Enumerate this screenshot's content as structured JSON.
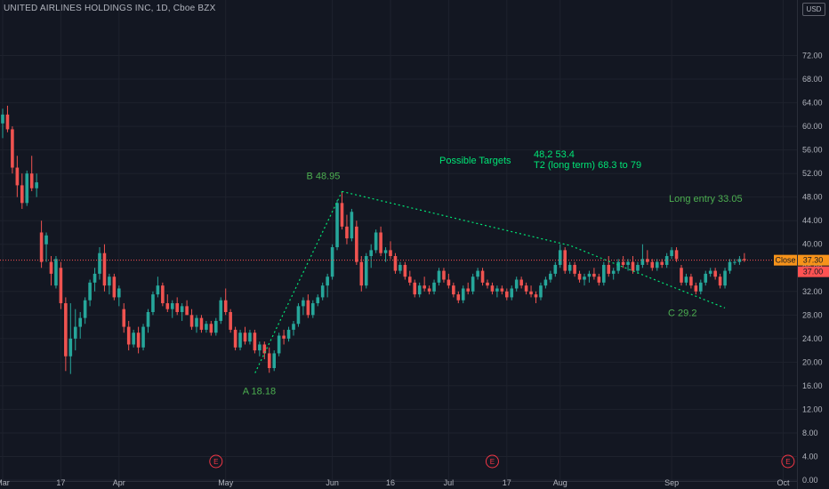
{
  "header": {
    "title": "UNITED AIRLINES HOLDINGS INC, 1D, Cboe BZX",
    "currency_button": "USD"
  },
  "colors": {
    "up": "#26a69a",
    "down": "#ef5350",
    "annotation": "#4caf50",
    "target": "#00e676",
    "price_line": "#ff5252",
    "last_badge": "#f7931a",
    "event": "#f23645"
  },
  "chart_data": {
    "type": "candlestick",
    "ylim": [
      0,
      76
    ],
    "y_ticks": [
      "72.00",
      "68.00",
      "64.00",
      "60.00",
      "56.00",
      "52.00",
      "48.00",
      "44.00",
      "40.00",
      "36.00",
      "32.00",
      "28.00",
      "24.00",
      "20.00",
      "16.00",
      "12.00",
      "8.00",
      "4.00",
      "0.00"
    ],
    "y_tick_values": [
      72,
      68,
      64,
      60,
      56,
      52,
      48,
      44,
      40,
      36,
      32,
      28,
      24,
      20,
      16,
      12,
      8,
      4,
      0
    ],
    "x_ticks": [
      "Mar",
      "17",
      "Apr",
      "May",
      "Jun",
      "16",
      "Jul",
      "17",
      "Aug",
      "Sep",
      "Oct"
    ],
    "x_tick_index": [
      0,
      12,
      24,
      46,
      68,
      80,
      92,
      104,
      115,
      138,
      161
    ],
    "candles": [
      [
        60.5,
        63.0,
        58.0,
        62.0
      ],
      [
        62.0,
        63.5,
        59.0,
        59.5
      ],
      [
        59.5,
        60.0,
        52.0,
        53.0
      ],
      [
        53.0,
        55.0,
        48.0,
        50.0
      ],
      [
        50.0,
        52.0,
        46.0,
        47.0
      ],
      [
        47.0,
        52.5,
        46.5,
        52.0
      ],
      [
        52.0,
        55.0,
        49.0,
        49.5
      ],
      [
        49.5,
        52.0,
        48.0,
        50.5
      ],
      [
        42.0,
        44.0,
        36.0,
        37.0
      ],
      [
        40.0,
        42.0,
        37.0,
        41.5
      ],
      [
        37.0,
        38.0,
        33.0,
        35.0
      ],
      [
        33.0,
        38.0,
        32.5,
        37.5
      ],
      [
        36.0,
        37.0,
        29.0,
        30.0
      ],
      [
        30.0,
        31.0,
        18.5,
        21.0
      ],
      [
        21.0,
        30.0,
        18.0,
        24.0
      ],
      [
        24.0,
        29.0,
        22.0,
        26.0
      ],
      [
        26.0,
        28.5,
        24.0,
        27.5
      ],
      [
        27.5,
        31.0,
        26.5,
        30.5
      ],
      [
        30.5,
        34.0,
        29.5,
        33.5
      ],
      [
        33.5,
        36.0,
        32.0,
        35.0
      ],
      [
        35.0,
        39.5,
        34.0,
        38.5
      ],
      [
        38.5,
        40.0,
        32.0,
        33.0
      ],
      [
        33.0,
        35.0,
        31.5,
        34.5
      ],
      [
        34.5,
        35.0,
        30.5,
        31.0
      ],
      [
        31.0,
        33.0,
        29.5,
        32.5
      ],
      [
        29.0,
        30.0,
        25.0,
        26.0
      ],
      [
        26.0,
        27.0,
        22.0,
        23.0
      ],
      [
        23.0,
        25.5,
        22.5,
        25.0
      ],
      [
        25.0,
        26.0,
        21.5,
        22.5
      ],
      [
        22.5,
        26.5,
        22.0,
        26.0
      ],
      [
        26.0,
        29.0,
        25.0,
        28.5
      ],
      [
        28.5,
        32.0,
        28.0,
        31.5
      ],
      [
        31.5,
        34.5,
        31.0,
        33.0
      ],
      [
        33.0,
        33.5,
        29.5,
        30.0
      ],
      [
        30.0,
        31.5,
        28.5,
        29.0
      ],
      [
        29.0,
        30.5,
        27.5,
        30.0
      ],
      [
        30.0,
        31.0,
        28.0,
        28.5
      ],
      [
        28.5,
        30.0,
        27.0,
        29.5
      ],
      [
        29.5,
        30.5,
        28.0,
        28.0
      ],
      [
        28.0,
        29.0,
        25.5,
        26.0
      ],
      [
        26.0,
        28.0,
        25.0,
        27.5
      ],
      [
        27.5,
        28.0,
        25.0,
        25.5
      ],
      [
        25.5,
        27.0,
        25.0,
        26.5
      ],
      [
        26.5,
        27.0,
        24.5,
        25.0
      ],
      [
        25.0,
        27.5,
        24.5,
        27.0
      ],
      [
        27.0,
        31.0,
        26.5,
        30.5
      ],
      [
        30.5,
        32.5,
        28.0,
        28.5
      ],
      [
        28.5,
        29.0,
        25.0,
        25.5
      ],
      [
        25.5,
        26.0,
        22.0,
        22.5
      ],
      [
        22.5,
        25.5,
        22.0,
        25.0
      ],
      [
        25.0,
        26.0,
        23.0,
        23.5
      ],
      [
        23.5,
        25.5,
        23.0,
        25.0
      ],
      [
        25.0,
        25.5,
        21.5,
        22.0
      ],
      [
        22.0,
        23.5,
        21.0,
        23.0
      ],
      [
        23.0,
        23.5,
        20.5,
        21.5
      ],
      [
        21.5,
        22.5,
        18.2,
        19.0
      ],
      [
        19.0,
        22.0,
        18.5,
        21.5
      ],
      [
        21.5,
        25.0,
        21.0,
        24.5
      ],
      [
        24.5,
        25.5,
        23.0,
        24.0
      ],
      [
        24.0,
        26.0,
        23.5,
        25.5
      ],
      [
        25.5,
        27.0,
        24.5,
        26.5
      ],
      [
        26.5,
        30.0,
        26.0,
        29.5
      ],
      [
        29.5,
        31.0,
        28.0,
        30.5
      ],
      [
        30.5,
        31.5,
        27.5,
        28.0
      ],
      [
        28.0,
        30.5,
        27.5,
        30.0
      ],
      [
        30.0,
        31.5,
        29.5,
        31.0
      ],
      [
        31.0,
        33.5,
        30.5,
        33.0
      ],
      [
        33.0,
        35.0,
        31.0,
        34.5
      ],
      [
        34.5,
        40.0,
        34.0,
        39.5
      ],
      [
        39.5,
        47.5,
        39.0,
        47.0
      ],
      [
        47.0,
        48.95,
        42.5,
        43.0
      ],
      [
        43.0,
        45.0,
        40.0,
        41.0
      ],
      [
        41.0,
        46.0,
        40.5,
        45.5
      ],
      [
        43.0,
        44.0,
        36.5,
        37.0
      ],
      [
        37.0,
        38.0,
        32.0,
        33.0
      ],
      [
        33.0,
        38.5,
        32.5,
        38.0
      ],
      [
        38.0,
        40.0,
        36.0,
        39.0
      ],
      [
        39.0,
        42.5,
        38.5,
        42.0
      ],
      [
        42.0,
        43.0,
        38.0,
        38.5
      ],
      [
        38.5,
        39.5,
        37.0,
        39.0
      ],
      [
        39.0,
        40.5,
        37.5,
        38.0
      ],
      [
        38.0,
        38.5,
        35.0,
        35.5
      ],
      [
        35.5,
        37.0,
        35.0,
        36.5
      ],
      [
        36.5,
        37.0,
        34.0,
        34.5
      ],
      [
        34.5,
        35.5,
        33.0,
        33.5
      ],
      [
        33.5,
        34.0,
        31.0,
        31.5
      ],
      [
        31.5,
        33.5,
        31.0,
        33.0
      ],
      [
        33.0,
        34.5,
        32.0,
        32.5
      ],
      [
        32.5,
        33.0,
        31.5,
        32.0
      ],
      [
        32.0,
        34.0,
        31.5,
        33.5
      ],
      [
        33.5,
        36.0,
        33.0,
        35.5
      ],
      [
        35.5,
        36.0,
        33.5,
        34.0
      ],
      [
        34.0,
        35.0,
        32.5,
        33.0
      ],
      [
        33.0,
        33.5,
        31.0,
        31.5
      ],
      [
        31.5,
        32.0,
        30.0,
        30.5
      ],
      [
        30.5,
        33.0,
        30.0,
        32.5
      ],
      [
        32.5,
        33.5,
        31.5,
        32.0
      ],
      [
        32.0,
        35.0,
        31.5,
        34.5
      ],
      [
        34.5,
        36.0,
        34.0,
        35.5
      ],
      [
        35.5,
        36.0,
        33.0,
        33.5
      ],
      [
        33.5,
        34.0,
        32.5,
        33.0
      ],
      [
        33.0,
        33.5,
        31.5,
        32.0
      ],
      [
        32.0,
        33.0,
        31.0,
        32.5
      ],
      [
        32.5,
        33.0,
        31.5,
        32.0
      ],
      [
        32.0,
        32.5,
        30.5,
        31.0
      ],
      [
        31.0,
        33.0,
        30.5,
        32.5
      ],
      [
        32.5,
        34.5,
        32.0,
        34.0
      ],
      [
        34.0,
        34.5,
        32.5,
        33.0
      ],
      [
        33.0,
        33.5,
        31.5,
        32.0
      ],
      [
        32.0,
        33.0,
        31.0,
        31.5
      ],
      [
        31.5,
        32.0,
        30.0,
        31.0
      ],
      [
        31.0,
        33.5,
        30.5,
        33.0
      ],
      [
        33.0,
        34.5,
        32.5,
        34.0
      ],
      [
        34.0,
        35.5,
        33.5,
        35.0
      ],
      [
        35.0,
        37.0,
        34.5,
        36.5
      ],
      [
        36.5,
        40.0,
        36.0,
        39.0
      ],
      [
        39.0,
        39.5,
        35.0,
        35.5
      ],
      [
        35.5,
        37.0,
        35.0,
        36.5
      ],
      [
        36.5,
        37.0,
        34.5,
        35.0
      ],
      [
        35.0,
        35.5,
        33.5,
        34.0
      ],
      [
        34.0,
        35.0,
        33.0,
        34.5
      ],
      [
        34.5,
        35.5,
        33.5,
        35.0
      ],
      [
        35.0,
        36.0,
        34.0,
        34.5
      ],
      [
        34.5,
        35.0,
        33.0,
        33.5
      ],
      [
        33.5,
        37.0,
        33.0,
        36.5
      ],
      [
        36.5,
        38.0,
        34.5,
        35.0
      ],
      [
        35.0,
        36.0,
        34.0,
        35.5
      ],
      [
        35.5,
        37.5,
        35.0,
        37.0
      ],
      [
        37.0,
        38.0,
        36.0,
        36.5
      ],
      [
        36.5,
        37.5,
        35.5,
        37.0
      ],
      [
        37.0,
        38.0,
        35.0,
        35.5
      ],
      [
        35.5,
        37.0,
        35.0,
        36.5
      ],
      [
        36.5,
        40.0,
        36.0,
        37.5
      ],
      [
        37.5,
        39.0,
        36.5,
        37.0
      ],
      [
        37.0,
        37.5,
        35.5,
        36.0
      ],
      [
        36.0,
        37.5,
        35.5,
        37.0
      ],
      [
        37.0,
        37.5,
        36.0,
        36.5
      ],
      [
        36.5,
        38.5,
        36.0,
        38.0
      ],
      [
        38.0,
        39.5,
        37.5,
        39.0
      ],
      [
        39.0,
        39.5,
        37.0,
        37.5
      ],
      [
        36.0,
        36.5,
        33.0,
        33.5
      ],
      [
        33.5,
        35.0,
        33.0,
        34.5
      ],
      [
        34.5,
        35.0,
        32.5,
        33.0
      ],
      [
        33.0,
        33.5,
        31.5,
        32.0
      ],
      [
        32.0,
        34.0,
        31.5,
        33.5
      ],
      [
        33.5,
        35.5,
        33.0,
        35.0
      ],
      [
        35.0,
        36.0,
        34.5,
        35.5
      ],
      [
        35.5,
        36.0,
        34.0,
        34.5
      ],
      [
        34.5,
        35.0,
        32.5,
        33.0
      ],
      [
        33.0,
        36.0,
        32.5,
        35.5
      ],
      [
        35.5,
        37.5,
        35.0,
        37.0
      ],
      [
        37.0,
        37.5,
        36.5,
        37.0
      ],
      [
        37.0,
        38.0,
        36.5,
        37.5
      ],
      [
        37.5,
        38.5,
        37.0,
        37.3
      ]
    ],
    "price_line": 37.3,
    "last_label": "Close",
    "last_price": "37.30",
    "current_label": "37.00",
    "annotations": {
      "A": "A 18.18",
      "B": "B 48.95",
      "C": "C 29.2",
      "possible_targets": "Possible Targets",
      "targets_values": "48,2  53.4",
      "targets_t2": "T2 (long term) 68.3 to 79",
      "long_entry": "Long entry  33.05"
    },
    "events": [
      "E",
      "E",
      "E"
    ]
  }
}
